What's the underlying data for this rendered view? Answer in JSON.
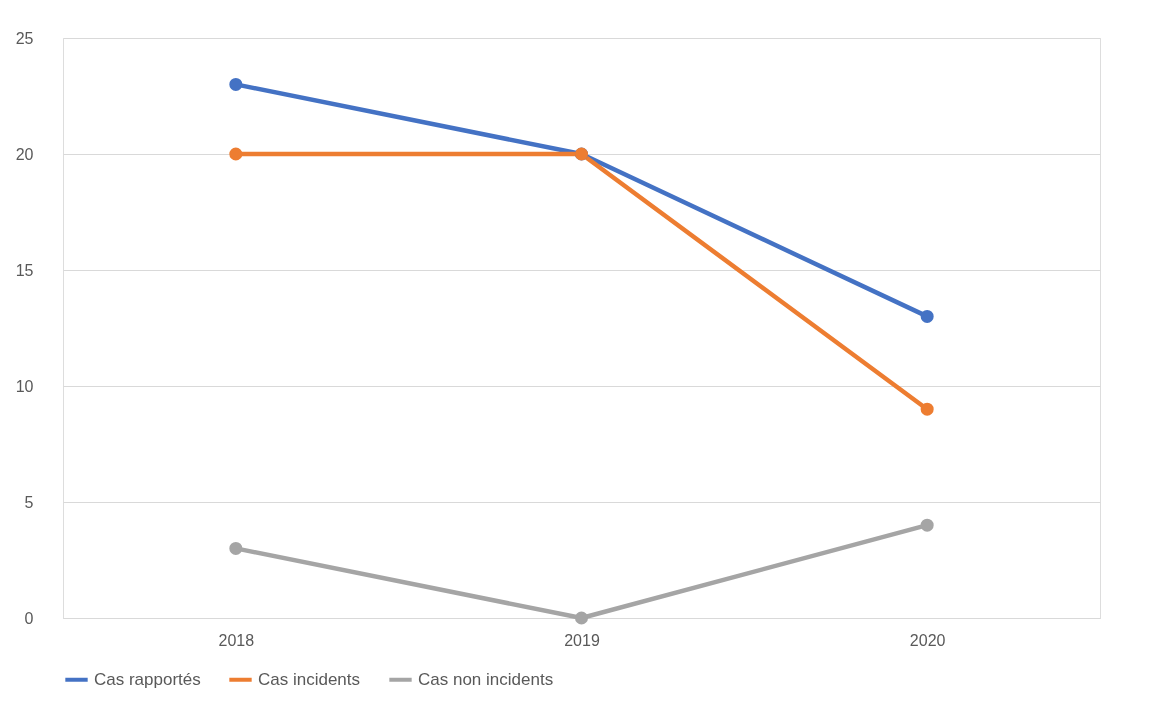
{
  "chart_data": {
    "type": "line",
    "categories": [
      "2018",
      "2019",
      "2020"
    ],
    "series": [
      {
        "name": "Cas rapportés",
        "color": "#4472c4",
        "values": [
          23,
          20,
          13
        ]
      },
      {
        "name": "Cas incidents",
        "color": "#ed7d31",
        "values": [
          20,
          20,
          9
        ]
      },
      {
        "name": "Cas non incidents",
        "color": "#a5a5a5",
        "values": [
          3,
          0,
          4
        ]
      }
    ],
    "ylim": [
      0,
      25
    ],
    "yticks": [
      0,
      5,
      10,
      15,
      20,
      25
    ],
    "grid": "y",
    "legend": "bottom",
    "marker": "circle",
    "line_style": "solid"
  }
}
